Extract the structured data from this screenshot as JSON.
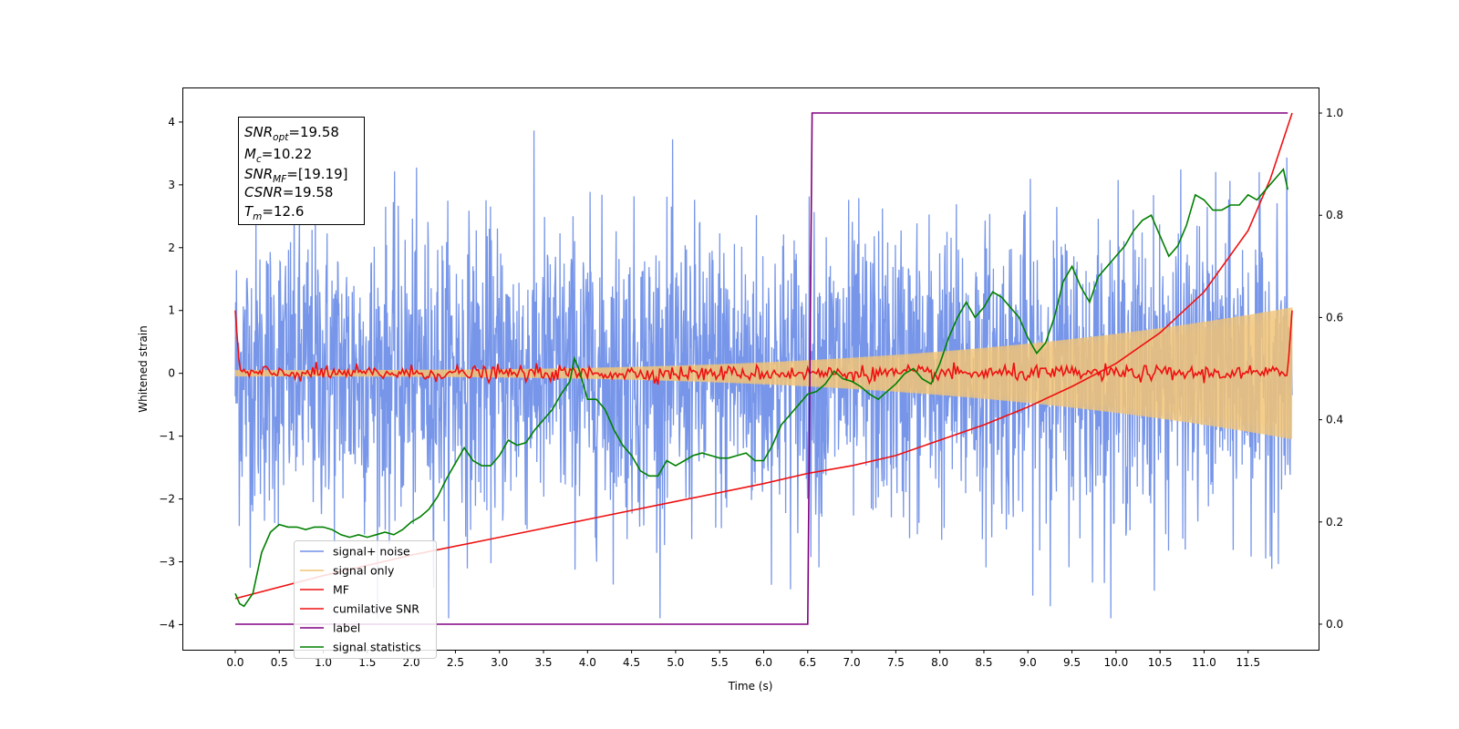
{
  "chart_data": {
    "type": "line",
    "title": "",
    "xlabel": "Time (s)",
    "ylabel": "Whitened strain",
    "y2label": "",
    "xlim": [
      -0.6,
      12.3
    ],
    "ylim": [
      -4.4,
      4.55
    ],
    "y2lim": [
      -0.05,
      1.05
    ],
    "x_ticks": [
      0.0,
      0.5,
      1.0,
      1.5,
      2.0,
      2.5,
      3.0,
      3.5,
      4.0,
      4.5,
      5.0,
      5.5,
      6.0,
      6.5,
      7.0,
      7.5,
      8.0,
      8.5,
      9.0,
      9.5,
      10.0,
      10.5,
      11.0,
      11.5
    ],
    "x_tick_labels": [
      "0.0",
      "0.5",
      "1.0",
      "1.5",
      "2.0",
      "2.5",
      "3.0",
      "3.5",
      "4.0",
      "4.5",
      "5.0",
      "5.5",
      "6.0",
      "6.5",
      "7.0",
      "7.5",
      "8.0",
      "8.5",
      "9.0",
      "9.5",
      "10.0",
      "10.5",
      "11.0",
      "11.5"
    ],
    "y_ticks": [
      -4,
      -3,
      -2,
      -1,
      0,
      1,
      2,
      3,
      4
    ],
    "y_tick_labels": [
      "−4",
      "−3",
      "−2",
      "−1",
      "0",
      "1",
      "2",
      "3",
      "4"
    ],
    "y2_ticks": [
      0.0,
      0.2,
      0.4,
      0.6,
      0.8,
      1.0
    ],
    "y2_tick_labels": [
      "0.0",
      "0.2",
      "0.4",
      "0.6",
      "0.8",
      "1.0"
    ],
    "grid": false,
    "legend_position": "bottom-left",
    "info_box": {
      "snr_opt_label": "SNR",
      "snr_opt_sub": "opt",
      "snr_opt_value": "=19.58",
      "mc_label": "M",
      "mc_sub": "c",
      "mc_value": "=10.22",
      "snr_mf_label": "SNR",
      "snr_mf_sub": "MF",
      "snr_mf_value": "=[19.19]",
      "csnr_label": "CSNR",
      "csnr_value": "=19.58",
      "tm_label": "T",
      "tm_sub": "m",
      "tm_value": "=12.6"
    },
    "series": [
      {
        "name": "signal+ noise",
        "color": "#7090e8",
        "axis": "left",
        "kind": "noise",
        "x_range": [
          0.0,
          12.0
        ],
        "envelope_min": -3.9,
        "envelope_max": 4.15
      },
      {
        "name": "signal only",
        "color": "#f2c475",
        "axis": "left",
        "kind": "chirp",
        "x_range": [
          0.0,
          12.0
        ],
        "amplitude_start": 0.05,
        "amplitude_end": 1.05
      },
      {
        "name": "MF",
        "color": "#ee1111",
        "axis": "left",
        "kind": "mf",
        "x": [
          0.0,
          0.05,
          11.95,
          12.0
        ],
        "y": [
          1.0,
          0.05,
          0.05,
          1.0
        ],
        "jitter": 0.06
      },
      {
        "name": "cumilative SNR",
        "color": "#ee1111",
        "axis": "right",
        "x": [
          0.0,
          1.0,
          2.0,
          3.0,
          4.0,
          5.0,
          6.0,
          6.5,
          7.0,
          7.5,
          8.0,
          8.5,
          9.0,
          9.5,
          10.0,
          10.5,
          11.0,
          11.5,
          11.75,
          12.0
        ],
        "y": [
          0.05,
          0.095,
          0.135,
          0.17,
          0.205,
          0.24,
          0.275,
          0.295,
          0.31,
          0.33,
          0.36,
          0.39,
          0.425,
          0.465,
          0.51,
          0.57,
          0.65,
          0.77,
          0.87,
          1.0
        ]
      },
      {
        "name": "label",
        "color": "#800080",
        "axis": "right",
        "x": [
          0.0,
          6.5,
          6.55,
          11.95
        ],
        "y": [
          0.0,
          0.0,
          1.0,
          1.0
        ]
      },
      {
        "name": "signal statistics",
        "color": "#008000",
        "axis": "right",
        "x": [
          0.0,
          0.05,
          0.1,
          0.2,
          0.25,
          0.3,
          0.4,
          0.5,
          0.6,
          0.7,
          0.8,
          0.9,
          1.0,
          1.1,
          1.2,
          1.3,
          1.4,
          1.5,
          1.6,
          1.7,
          1.8,
          1.9,
          2.0,
          2.1,
          2.2,
          2.3,
          2.4,
          2.5,
          2.6,
          2.7,
          2.8,
          2.9,
          3.0,
          3.1,
          3.2,
          3.3,
          3.4,
          3.5,
          3.6,
          3.7,
          3.8,
          3.85,
          3.9,
          4.0,
          4.1,
          4.2,
          4.3,
          4.4,
          4.5,
          4.6,
          4.7,
          4.8,
          4.9,
          5.0,
          5.1,
          5.2,
          5.3,
          5.4,
          5.5,
          5.6,
          5.7,
          5.8,
          5.9,
          6.0,
          6.1,
          6.2,
          6.3,
          6.4,
          6.5,
          6.6,
          6.7,
          6.8,
          6.9,
          7.0,
          7.1,
          7.2,
          7.3,
          7.4,
          7.5,
          7.6,
          7.7,
          7.8,
          7.9,
          8.0,
          8.1,
          8.2,
          8.3,
          8.4,
          8.5,
          8.6,
          8.7,
          8.8,
          8.9,
          9.0,
          9.1,
          9.2,
          9.3,
          9.4,
          9.5,
          9.6,
          9.7,
          9.8,
          9.9,
          10.0,
          10.1,
          10.2,
          10.3,
          10.4,
          10.5,
          10.6,
          10.7,
          10.8,
          10.9,
          11.0,
          11.1,
          11.2,
          11.3,
          11.4,
          11.5,
          11.6,
          11.7,
          11.8,
          11.9,
          11.95
        ],
        "y": [
          0.06,
          0.04,
          0.035,
          0.06,
          0.1,
          0.14,
          0.18,
          0.195,
          0.19,
          0.19,
          0.185,
          0.19,
          0.19,
          0.185,
          0.175,
          0.17,
          0.175,
          0.17,
          0.175,
          0.18,
          0.175,
          0.185,
          0.2,
          0.21,
          0.225,
          0.25,
          0.285,
          0.315,
          0.345,
          0.32,
          0.31,
          0.31,
          0.33,
          0.36,
          0.35,
          0.355,
          0.38,
          0.4,
          0.42,
          0.45,
          0.475,
          0.52,
          0.5,
          0.44,
          0.44,
          0.42,
          0.38,
          0.35,
          0.33,
          0.3,
          0.29,
          0.29,
          0.32,
          0.31,
          0.32,
          0.33,
          0.335,
          0.33,
          0.325,
          0.325,
          0.33,
          0.335,
          0.32,
          0.32,
          0.35,
          0.39,
          0.41,
          0.43,
          0.45,
          0.455,
          0.47,
          0.495,
          0.48,
          0.475,
          0.465,
          0.45,
          0.44,
          0.455,
          0.47,
          0.49,
          0.5,
          0.48,
          0.47,
          0.51,
          0.56,
          0.6,
          0.63,
          0.6,
          0.62,
          0.65,
          0.64,
          0.62,
          0.6,
          0.56,
          0.53,
          0.55,
          0.6,
          0.67,
          0.7,
          0.66,
          0.63,
          0.68,
          0.7,
          0.72,
          0.74,
          0.77,
          0.79,
          0.8,
          0.76,
          0.72,
          0.74,
          0.78,
          0.84,
          0.83,
          0.81,
          0.81,
          0.82,
          0.82,
          0.84,
          0.83,
          0.85,
          0.87,
          0.89,
          0.85
        ]
      }
    ]
  }
}
